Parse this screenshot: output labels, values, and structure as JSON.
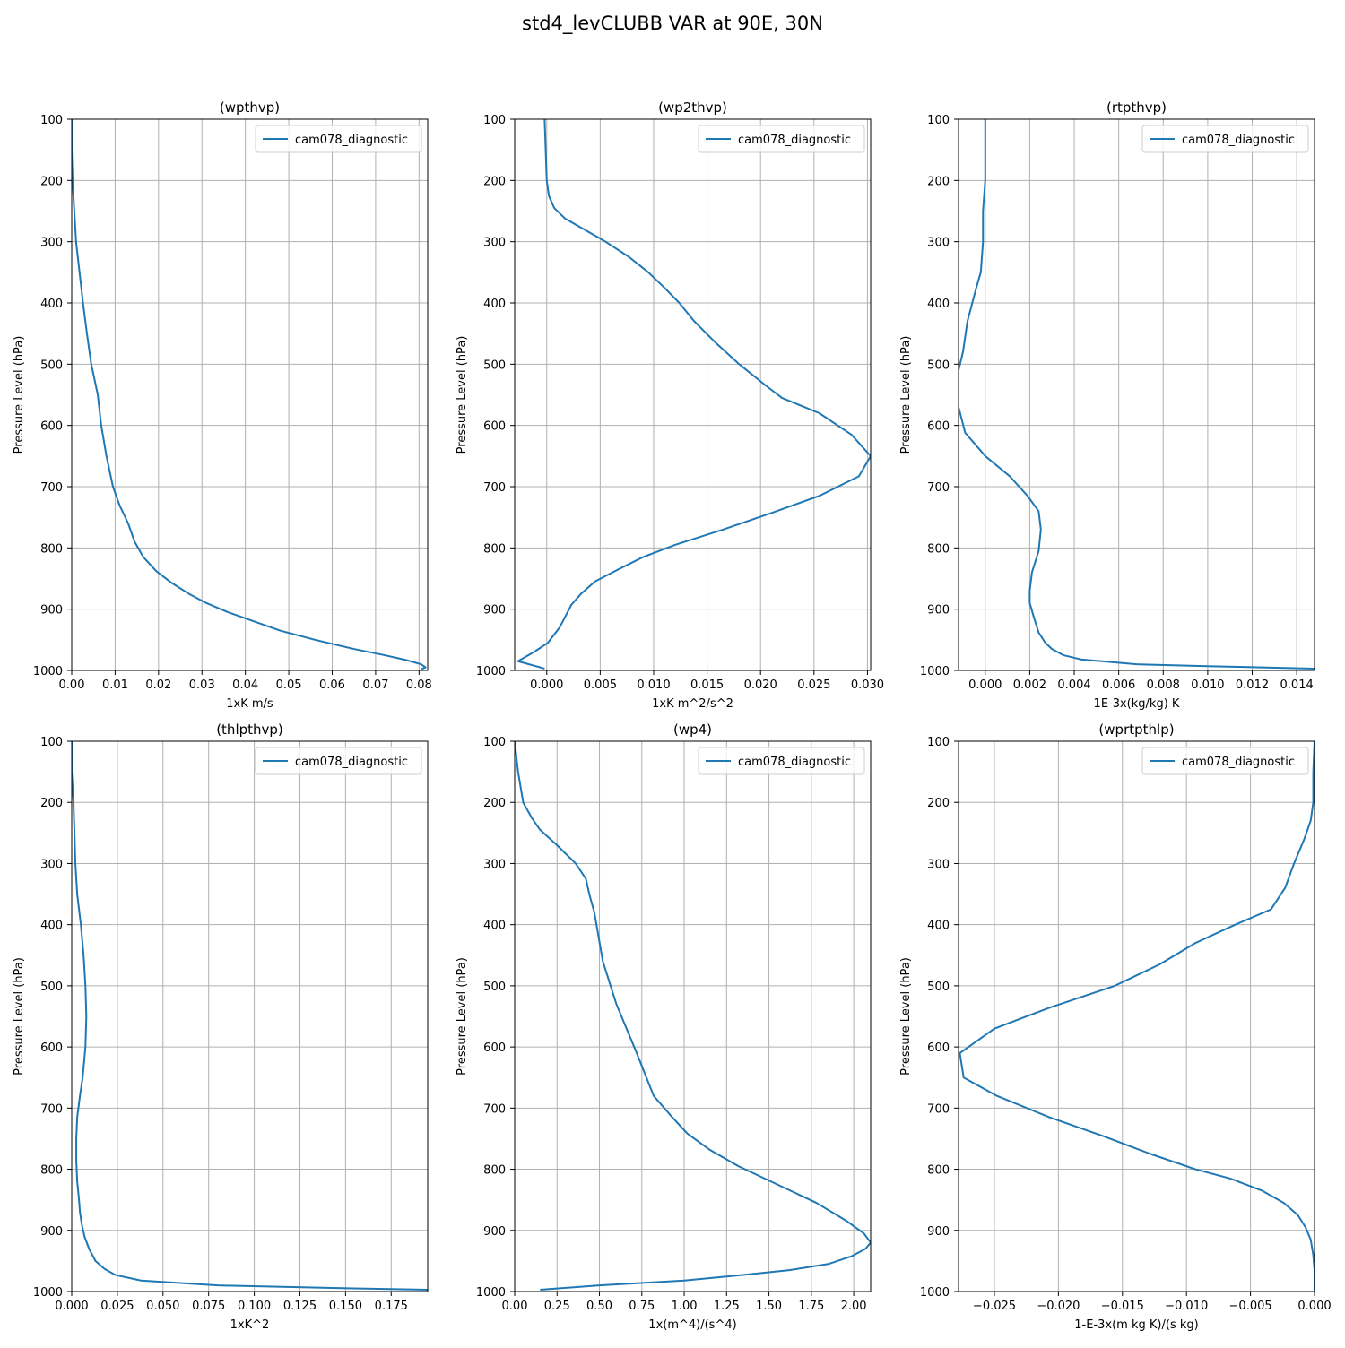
{
  "figure": {
    "title": "std4_levCLUBB VAR at 90E, 30N"
  },
  "style": {
    "line_color": "#1f77b4",
    "grid_color": "#b0b0b0"
  },
  "chart_data": [
    {
      "type": "line",
      "title": "(wpthvp)",
      "xlabel": "1xK m/s",
      "ylabel": "Pressure Level (hPa)",
      "xlim": [
        0.0,
        0.082
      ],
      "ylim": [
        1000,
        100
      ],
      "y_inverted": true,
      "xticks": [
        0.0,
        0.01,
        0.02,
        0.03,
        0.04,
        0.05,
        0.06,
        0.07,
        0.08
      ],
      "xtick_labels": [
        "0.00",
        "0.01",
        "0.02",
        "0.03",
        "0.04",
        "0.05",
        "0.06",
        "0.07",
        "0.08"
      ],
      "yticks": [
        100,
        200,
        300,
        400,
        500,
        600,
        700,
        800,
        900,
        1000
      ],
      "ytick_labels": [
        "100",
        "200",
        "300",
        "400",
        "500",
        "600",
        "700",
        "800",
        "900",
        "1000"
      ],
      "grid": true,
      "legend_position": "top-right",
      "series": [
        {
          "name": "cam078_diagnostic",
          "x": [
            0.0,
            0.0,
            0.0002,
            0.0006,
            0.001,
            0.0018,
            0.0026,
            0.0035,
            0.0045,
            0.006,
            0.0068,
            0.008,
            0.0095,
            0.011,
            0.013,
            0.0145,
            0.0165,
            0.0195,
            0.023,
            0.027,
            0.031,
            0.036,
            0.042,
            0.048,
            0.056,
            0.065,
            0.072,
            0.077,
            0.0805,
            0.0815,
            0.0805
          ],
          "y": [
            100,
            150,
            200,
            250,
            300,
            350,
            400,
            450,
            500,
            550,
            600,
            650,
            700,
            730,
            760,
            790,
            815,
            838,
            857,
            875,
            890,
            905,
            920,
            935,
            950,
            965,
            975,
            983,
            990,
            995,
            998
          ]
        }
      ]
    },
    {
      "type": "line",
      "title": "(wp2thvp)",
      "xlabel": "1xK m^2/s^2",
      "ylabel": "Pressure Level (hPa)",
      "xlim": [
        -0.003,
        0.0303
      ],
      "ylim": [
        1000,
        100
      ],
      "y_inverted": true,
      "xticks": [
        0.0,
        0.005,
        0.01,
        0.015,
        0.02,
        0.025,
        0.03
      ],
      "xtick_labels": [
        "0.000",
        "0.005",
        "0.010",
        "0.015",
        "0.020",
        "0.025",
        "0.030"
      ],
      "yticks": [
        100,
        200,
        300,
        400,
        500,
        600,
        700,
        800,
        900,
        1000
      ],
      "ytick_labels": [
        "100",
        "200",
        "300",
        "400",
        "500",
        "600",
        "700",
        "800",
        "900",
        "1000"
      ],
      "grid": true,
      "legend_position": "top-right",
      "series": [
        {
          "name": "cam078_diagnostic",
          "x": [
            -0.0002,
            -0.0001,
            0.0,
            0.0002,
            0.0007,
            0.0017,
            0.0035,
            0.0055,
            0.0077,
            0.0095,
            0.011,
            0.0124,
            0.0138,
            0.0158,
            0.018,
            0.0205,
            0.022,
            0.0255,
            0.0285,
            0.0303,
            0.0292,
            0.0255,
            0.021,
            0.0165,
            0.012,
            0.009,
            0.0067,
            0.0045,
            0.0032,
            0.0023,
            0.0012,
            0.0001,
            -0.0012,
            -0.0027,
            -0.0002
          ],
          "y": [
            100,
            150,
            200,
            225,
            245,
            262,
            280,
            300,
            325,
            350,
            375,
            400,
            430,
            465,
            500,
            535,
            555,
            580,
            615,
            650,
            683,
            715,
            743,
            770,
            795,
            815,
            835,
            855,
            875,
            893,
            930,
            955,
            970,
            985,
            997
          ]
        }
      ]
    },
    {
      "type": "line",
      "title": "(rtpthvp)",
      "xlabel": "1E-3x(kg/kg) K",
      "ylabel": "Pressure Level (hPa)",
      "xlim": [
        -0.0012,
        0.0148
      ],
      "ylim": [
        1000,
        100
      ],
      "y_inverted": true,
      "xticks": [
        0.0,
        0.002,
        0.004,
        0.006,
        0.008,
        0.01,
        0.012,
        0.014
      ],
      "xtick_labels": [
        "0.000",
        "0.002",
        "0.004",
        "0.006",
        "0.008",
        "0.010",
        "0.012",
        "0.014"
      ],
      "yticks": [
        100,
        200,
        300,
        400,
        500,
        600,
        700,
        800,
        900,
        1000
      ],
      "ytick_labels": [
        "100",
        "200",
        "300",
        "400",
        "500",
        "600",
        "700",
        "800",
        "900",
        "1000"
      ],
      "grid": true,
      "legend_position": "top-right",
      "series": [
        {
          "name": "cam078_diagnostic",
          "x": [
            0.0,
            0.0,
            0.0,
            -0.0001,
            -0.0001,
            -0.0002,
            -0.0004,
            -0.0008,
            -0.001,
            -0.0012,
            -0.0012,
            -0.0009,
            0.0,
            0.0011,
            0.0019,
            0.0024,
            0.0025,
            0.0024,
            0.0021,
            0.002,
            0.002,
            0.0022,
            0.0024,
            0.0027,
            0.003,
            0.0035,
            0.0043,
            0.0068,
            0.01,
            0.0148
          ],
          "y": [
            100,
            150,
            200,
            250,
            300,
            350,
            375,
            430,
            480,
            510,
            570,
            612,
            650,
            683,
            715,
            740,
            770,
            805,
            840,
            870,
            890,
            915,
            938,
            955,
            965,
            975,
            982,
            990,
            993,
            997
          ]
        }
      ]
    },
    {
      "type": "line",
      "title": "(thlpthvp)",
      "xlabel": "1xK^2",
      "ylabel": "Pressure Level (hPa)",
      "xlim": [
        0.0,
        0.195
      ],
      "ylim": [
        1000,
        100
      ],
      "y_inverted": true,
      "xticks": [
        0.0,
        0.025,
        0.05,
        0.075,
        0.1,
        0.125,
        0.15,
        0.175
      ],
      "xtick_labels": [
        "0.000",
        "0.025",
        "0.050",
        "0.075",
        "0.100",
        "0.125",
        "0.150",
        "0.175"
      ],
      "yticks": [
        100,
        200,
        300,
        400,
        500,
        600,
        700,
        800,
        900,
        1000
      ],
      "ytick_labels": [
        "100",
        "200",
        "300",
        "400",
        "500",
        "600",
        "700",
        "800",
        "900",
        "1000"
      ],
      "grid": true,
      "legend_position": "top-right",
      "series": [
        {
          "name": "cam078_diagnostic",
          "x": [
            0.0,
            0.0,
            0.001,
            0.0015,
            0.002,
            0.003,
            0.005,
            0.0065,
            0.0075,
            0.008,
            0.0075,
            0.006,
            0.0045,
            0.003,
            0.0025,
            0.0025,
            0.003,
            0.004,
            0.0045,
            0.0055,
            0.007,
            0.0095,
            0.013,
            0.018,
            0.024,
            0.038,
            0.08,
            0.14,
            0.195
          ],
          "y": [
            100,
            150,
            200,
            250,
            300,
            350,
            400,
            450,
            500,
            550,
            600,
            650,
            680,
            715,
            750,
            785,
            820,
            850,
            870,
            890,
            910,
            930,
            950,
            963,
            973,
            982,
            990,
            994,
            997
          ]
        }
      ]
    },
    {
      "type": "line",
      "title": "(wp4)",
      "xlabel": "1x(m^4)/(s^4)",
      "ylabel": "Pressure Level (hPa)",
      "xlim": [
        0.0,
        2.1
      ],
      "ylim": [
        1000,
        100
      ],
      "y_inverted": true,
      "xticks": [
        0.0,
        0.25,
        0.5,
        0.75,
        1.0,
        1.25,
        1.5,
        1.75,
        2.0
      ],
      "xtick_labels": [
        "0.00",
        "0.25",
        "0.50",
        "0.75",
        "1.00",
        "1.25",
        "1.50",
        "1.75",
        "2.00"
      ],
      "yticks": [
        100,
        200,
        300,
        400,
        500,
        600,
        700,
        800,
        900,
        1000
      ],
      "ytick_labels": [
        "100",
        "200",
        "300",
        "400",
        "500",
        "600",
        "700",
        "800",
        "900",
        "1000"
      ],
      "grid": true,
      "legend_position": "top-right",
      "series": [
        {
          "name": "cam078_diagnostic",
          "x": [
            0.0,
            0.02,
            0.05,
            0.1,
            0.15,
            0.25,
            0.36,
            0.42,
            0.44,
            0.47,
            0.52,
            0.6,
            0.72,
            0.82,
            0.92,
            1.02,
            1.15,
            1.32,
            1.55,
            1.78,
            1.96,
            2.06,
            2.1,
            2.07,
            1.99,
            1.85,
            1.62,
            1.34,
            1.0,
            0.5,
            0.15
          ],
          "y": [
            100,
            150,
            200,
            225,
            245,
            270,
            300,
            325,
            350,
            380,
            460,
            530,
            610,
            680,
            712,
            742,
            768,
            795,
            825,
            855,
            885,
            905,
            920,
            930,
            942,
            955,
            965,
            973,
            982,
            990,
            997
          ]
        }
      ]
    },
    {
      "type": "line",
      "title": "(wprtpthlp)",
      "xlabel": "1-E-3x(m kg K)/(s kg)",
      "ylabel": "Pressure Level (hPa)",
      "xlim": [
        -0.0278,
        0.0
      ],
      "ylim": [
        1000,
        100
      ],
      "y_inverted": true,
      "xticks": [
        -0.025,
        -0.02,
        -0.015,
        -0.01,
        -0.005,
        0.0
      ],
      "xtick_labels": [
        "−0.025",
        "−0.020",
        "−0.015",
        "−0.010",
        "−0.005",
        "0.000"
      ],
      "yticks": [
        100,
        200,
        300,
        400,
        500,
        600,
        700,
        800,
        900,
        1000
      ],
      "ytick_labels": [
        "100",
        "200",
        "300",
        "400",
        "500",
        "600",
        "700",
        "800",
        "900",
        "1000"
      ],
      "grid": true,
      "legend_position": "top-right",
      "series": [
        {
          "name": "cam078_diagnostic",
          "x": [
            0.0,
            -0.0001,
            -0.0001,
            -0.0003,
            -0.0008,
            -0.0016,
            -0.0023,
            -0.0034,
            -0.0062,
            -0.0093,
            -0.0121,
            -0.0156,
            -0.0206,
            -0.025,
            -0.0277,
            -0.0274,
            -0.0248,
            -0.0207,
            -0.0166,
            -0.0128,
            -0.0093,
            -0.0066,
            -0.0041,
            -0.0024,
            -0.0013,
            -0.0007,
            -0.0003,
            -0.0001,
            0.0,
            0.0
          ],
          "y": [
            100,
            150,
            200,
            230,
            260,
            300,
            340,
            375,
            400,
            430,
            465,
            500,
            535,
            570,
            610,
            650,
            680,
            715,
            745,
            775,
            800,
            815,
            835,
            855,
            875,
            895,
            915,
            940,
            965,
            998
          ]
        }
      ]
    }
  ]
}
